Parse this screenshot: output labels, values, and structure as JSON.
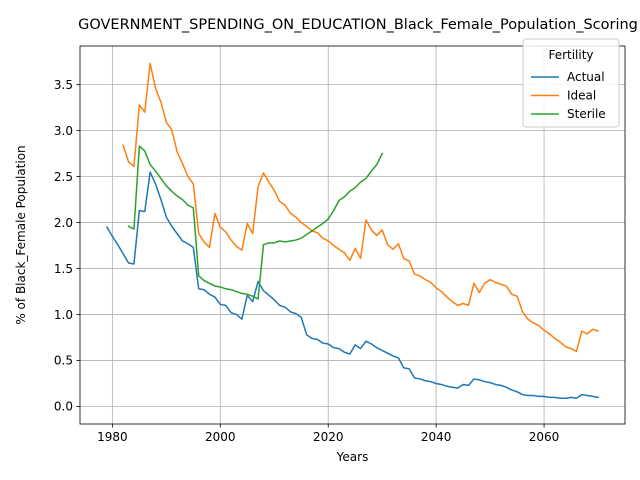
{
  "chart_data": {
    "type": "line",
    "title": "GOVERNMENT_SPENDING_ON_EDUCATION_Black_Female_Population_Scoring",
    "xlabel": "Years",
    "ylabel": "% of Black_Female Population",
    "xlim": [
      1974,
      2075
    ],
    "ylim": [
      -0.19,
      3.92
    ],
    "xticks": [
      1980,
      2000,
      2020,
      2040,
      2060
    ],
    "yticks": [
      0.0,
      0.5,
      1.0,
      1.5,
      2.0,
      2.5,
      3.0,
      3.5
    ],
    "xtick_labels": [
      "1980",
      "2000",
      "2020",
      "2040",
      "2060"
    ],
    "ytick_labels": [
      "0.0",
      "0.5",
      "1.0",
      "1.5",
      "2.0",
      "2.5",
      "3.0",
      "3.5"
    ],
    "grid": true,
    "legend": {
      "title": "Fertility",
      "placement": "top-right"
    },
    "series": [
      {
        "name": "Actual",
        "color": "#1f77b4",
        "points": [
          [
            1979,
            1.95
          ],
          [
            1980,
            1.85
          ],
          [
            1981,
            1.76
          ],
          [
            1982,
            1.66
          ],
          [
            1983,
            1.56
          ],
          [
            1984,
            1.55
          ],
          [
            1985,
            2.13
          ],
          [
            1986,
            2.12
          ],
          [
            1987,
            2.55
          ],
          [
            1988,
            2.42
          ],
          [
            1989,
            2.25
          ],
          [
            1990,
            2.06
          ],
          [
            1991,
            1.96
          ],
          [
            1992,
            1.88
          ],
          [
            1993,
            1.8
          ],
          [
            1994,
            1.77
          ],
          [
            1995,
            1.73
          ],
          [
            1996,
            1.28
          ],
          [
            1997,
            1.27
          ],
          [
            1998,
            1.22
          ],
          [
            1999,
            1.19
          ],
          [
            2000,
            1.11
          ],
          [
            2001,
            1.1
          ],
          [
            2002,
            1.02
          ],
          [
            2003,
            1.0
          ],
          [
            2004,
            0.95
          ],
          [
            2005,
            1.21
          ],
          [
            2006,
            1.14
          ],
          [
            2007,
            1.36
          ],
          [
            2008,
            1.26
          ],
          [
            2009,
            1.21
          ],
          [
            2010,
            1.16
          ],
          [
            2011,
            1.1
          ],
          [
            2012,
            1.08
          ],
          [
            2013,
            1.03
          ],
          [
            2014,
            1.01
          ],
          [
            2015,
            0.97
          ],
          [
            2016,
            0.78
          ],
          [
            2017,
            0.74
          ],
          [
            2018,
            0.73
          ],
          [
            2019,
            0.69
          ],
          [
            2020,
            0.68
          ],
          [
            2021,
            0.64
          ],
          [
            2022,
            0.63
          ],
          [
            2023,
            0.59
          ],
          [
            2024,
            0.57
          ],
          [
            2025,
            0.67
          ],
          [
            2026,
            0.63
          ],
          [
            2027,
            0.71
          ],
          [
            2028,
            0.68
          ],
          [
            2029,
            0.64
          ],
          [
            2030,
            0.61
          ],
          [
            2031,
            0.58
          ],
          [
            2032,
            0.55
          ],
          [
            2033,
            0.53
          ],
          [
            2034,
            0.42
          ],
          [
            2035,
            0.41
          ],
          [
            2036,
            0.31
          ],
          [
            2037,
            0.3
          ],
          [
            2038,
            0.28
          ],
          [
            2039,
            0.27
          ],
          [
            2040,
            0.25
          ],
          [
            2041,
            0.24
          ],
          [
            2042,
            0.22
          ],
          [
            2043,
            0.21
          ],
          [
            2044,
            0.2
          ],
          [
            2045,
            0.24
          ],
          [
            2046,
            0.23
          ],
          [
            2047,
            0.3
          ],
          [
            2048,
            0.29
          ],
          [
            2049,
            0.27
          ],
          [
            2050,
            0.26
          ],
          [
            2051,
            0.24
          ],
          [
            2052,
            0.23
          ],
          [
            2053,
            0.21
          ],
          [
            2054,
            0.18
          ],
          [
            2055,
            0.16
          ],
          [
            2056,
            0.13
          ],
          [
            2057,
            0.12
          ],
          [
            2058,
            0.12
          ],
          [
            2059,
            0.11
          ],
          [
            2060,
            0.11
          ],
          [
            2061,
            0.1
          ],
          [
            2062,
            0.1
          ],
          [
            2063,
            0.09
          ],
          [
            2064,
            0.09
          ],
          [
            2065,
            0.1
          ],
          [
            2066,
            0.09
          ],
          [
            2067,
            0.13
          ],
          [
            2068,
            0.12
          ],
          [
            2069,
            0.11
          ],
          [
            2070,
            0.1
          ]
        ]
      },
      {
        "name": "Ideal",
        "color": "#ff7f0e",
        "points": [
          [
            1982,
            2.84
          ],
          [
            1983,
            2.66
          ],
          [
            1984,
            2.61
          ],
          [
            1985,
            3.28
          ],
          [
            1986,
            3.2
          ],
          [
            1987,
            3.73
          ],
          [
            1988,
            3.46
          ],
          [
            1989,
            3.31
          ],
          [
            1990,
            3.09
          ],
          [
            1991,
            3.01
          ],
          [
            1992,
            2.77
          ],
          [
            1993,
            2.64
          ],
          [
            1994,
            2.5
          ],
          [
            1995,
            2.42
          ],
          [
            1996,
            1.88
          ],
          [
            1997,
            1.79
          ],
          [
            1998,
            1.73
          ],
          [
            1999,
            2.1
          ],
          [
            2000,
            1.95
          ],
          [
            2001,
            1.9
          ],
          [
            2002,
            1.81
          ],
          [
            2003,
            1.74
          ],
          [
            2004,
            1.7
          ],
          [
            2005,
            1.99
          ],
          [
            2006,
            1.88
          ],
          [
            2007,
            2.39
          ],
          [
            2008,
            2.54
          ],
          [
            2009,
            2.44
          ],
          [
            2010,
            2.35
          ],
          [
            2011,
            2.23
          ],
          [
            2012,
            2.19
          ],
          [
            2013,
            2.1
          ],
          [
            2014,
            2.06
          ],
          [
            2015,
            2.0
          ],
          [
            2016,
            1.96
          ],
          [
            2017,
            1.91
          ],
          [
            2018,
            1.89
          ],
          [
            2019,
            1.83
          ],
          [
            2020,
            1.8
          ],
          [
            2021,
            1.75
          ],
          [
            2022,
            1.71
          ],
          [
            2023,
            1.67
          ],
          [
            2024,
            1.59
          ],
          [
            2025,
            1.72
          ],
          [
            2026,
            1.61
          ],
          [
            2027,
            2.03
          ],
          [
            2028,
            1.92
          ],
          [
            2029,
            1.86
          ],
          [
            2030,
            1.92
          ],
          [
            2031,
            1.76
          ],
          [
            2032,
            1.71
          ],
          [
            2033,
            1.77
          ],
          [
            2034,
            1.61
          ],
          [
            2035,
            1.58
          ],
          [
            2036,
            1.44
          ],
          [
            2037,
            1.42
          ],
          [
            2038,
            1.38
          ],
          [
            2039,
            1.35
          ],
          [
            2040,
            1.29
          ],
          [
            2041,
            1.25
          ],
          [
            2042,
            1.19
          ],
          [
            2043,
            1.14
          ],
          [
            2044,
            1.1
          ],
          [
            2045,
            1.12
          ],
          [
            2046,
            1.1
          ],
          [
            2047,
            1.34
          ],
          [
            2048,
            1.24
          ],
          [
            2049,
            1.34
          ],
          [
            2050,
            1.38
          ],
          [
            2051,
            1.35
          ],
          [
            2052,
            1.33
          ],
          [
            2053,
            1.31
          ],
          [
            2054,
            1.22
          ],
          [
            2055,
            1.2
          ],
          [
            2056,
            1.03
          ],
          [
            2057,
            0.95
          ],
          [
            2058,
            0.91
          ],
          [
            2059,
            0.88
          ],
          [
            2060,
            0.83
          ],
          [
            2061,
            0.79
          ],
          [
            2062,
            0.74
          ],
          [
            2063,
            0.7
          ],
          [
            2064,
            0.65
          ],
          [
            2065,
            0.63
          ],
          [
            2066,
            0.6
          ],
          [
            2067,
            0.82
          ],
          [
            2068,
            0.79
          ],
          [
            2069,
            0.84
          ],
          [
            2070,
            0.82
          ]
        ]
      },
      {
        "name": "Sterile",
        "color": "#2ca02c",
        "points": [
          [
            1983,
            1.96
          ],
          [
            1984,
            1.93
          ],
          [
            1985,
            2.83
          ],
          [
            1986,
            2.78
          ],
          [
            1987,
            2.63
          ],
          [
            1988,
            2.56
          ],
          [
            1989,
            2.48
          ],
          [
            1990,
            2.4
          ],
          [
            1991,
            2.34
          ],
          [
            1992,
            2.29
          ],
          [
            1993,
            2.25
          ],
          [
            1994,
            2.19
          ],
          [
            1995,
            2.16
          ],
          [
            1996,
            1.42
          ],
          [
            1997,
            1.37
          ],
          [
            1998,
            1.34
          ],
          [
            1999,
            1.31
          ],
          [
            2000,
            1.3
          ],
          [
            2001,
            1.28
          ],
          [
            2002,
            1.27
          ],
          [
            2003,
            1.25
          ],
          [
            2004,
            1.23
          ],
          [
            2005,
            1.22
          ],
          [
            2006,
            1.2
          ],
          [
            2007,
            1.17
          ],
          [
            2008,
            1.76
          ],
          [
            2009,
            1.78
          ],
          [
            2010,
            1.78
          ],
          [
            2011,
            1.8
          ],
          [
            2012,
            1.79
          ],
          [
            2013,
            1.8
          ],
          [
            2014,
            1.81
          ],
          [
            2015,
            1.83
          ],
          [
            2016,
            1.87
          ],
          [
            2017,
            1.91
          ],
          [
            2018,
            1.95
          ],
          [
            2019,
            1.99
          ],
          [
            2020,
            2.04
          ],
          [
            2021,
            2.13
          ],
          [
            2022,
            2.24
          ],
          [
            2023,
            2.28
          ],
          [
            2024,
            2.34
          ],
          [
            2025,
            2.38
          ],
          [
            2026,
            2.44
          ],
          [
            2027,
            2.48
          ],
          [
            2028,
            2.56
          ],
          [
            2029,
            2.63
          ],
          [
            2030,
            2.75
          ]
        ]
      }
    ]
  }
}
